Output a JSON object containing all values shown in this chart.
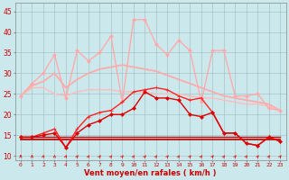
{
  "xlabel": "Vent moyen/en rafales ( km/h )",
  "background_color": "#cbe9ed",
  "grid_color": "#a0b8bb",
  "x": [
    0,
    1,
    2,
    3,
    4,
    5,
    6,
    7,
    8,
    9,
    10,
    11,
    12,
    13,
    14,
    15,
    16,
    17,
    18,
    19,
    20,
    21,
    22,
    23
  ],
  "ylim": [
    9,
    47
  ],
  "yticks": [
    10,
    15,
    20,
    25,
    30,
    35,
    40,
    45
  ],
  "series": [
    {
      "values": [
        14.5,
        14.5,
        14.5,
        14.5,
        14.5,
        14.5,
        14.5,
        14.5,
        14.5,
        14.5,
        14.5,
        14.5,
        14.5,
        14.5,
        14.5,
        14.5,
        14.5,
        14.5,
        14.5,
        14.5,
        14.5,
        14.5,
        14.5,
        14.5
      ],
      "color": "#cc0000",
      "linewidth": 1.0,
      "marker": null
    },
    {
      "values": [
        14.0,
        14.0,
        14.0,
        14.0,
        14.0,
        14.0,
        14.0,
        14.0,
        14.0,
        14.0,
        14.0,
        14.0,
        14.0,
        14.0,
        14.0,
        14.0,
        14.0,
        14.0,
        14.0,
        14.0,
        14.0,
        14.0,
        14.0,
        14.0
      ],
      "color": "#aa0000",
      "linewidth": 1.2,
      "marker": null
    },
    {
      "values": [
        24.5,
        27.0,
        28.0,
        30.0,
        26.5,
        28.5,
        30.0,
        31.0,
        31.5,
        32.0,
        31.5,
        31.0,
        30.5,
        29.5,
        28.5,
        27.5,
        26.5,
        25.5,
        24.5,
        24.0,
        23.5,
        23.0,
        22.5,
        21.0
      ],
      "color": "#ffaaaa",
      "linewidth": 1.3,
      "marker": null
    },
    {
      "values": [
        24.5,
        26.5,
        26.5,
        25.0,
        24.5,
        25.5,
        26.0,
        26.0,
        26.0,
        25.5,
        25.5,
        25.5,
        25.0,
        25.0,
        25.0,
        24.5,
        24.0,
        24.0,
        23.5,
        23.0,
        22.5,
        22.5,
        22.0,
        21.0
      ],
      "color": "#ffbbbb",
      "linewidth": 1.0,
      "marker": null
    },
    {
      "values": [
        24.5,
        27.5,
        30.0,
        34.5,
        24.0,
        35.5,
        33.0,
        35.0,
        39.0,
        23.0,
        43.0,
        43.0,
        37.0,
        34.5,
        38.0,
        35.5,
        23.0,
        35.5,
        35.5,
        24.5,
        24.5,
        25.0,
        21.5,
        21.0
      ],
      "color": "#ffaaaa",
      "linewidth": 1.0,
      "marker": "D",
      "markersize": 2.0
    },
    {
      "values": [
        14.5,
        14.5,
        15.5,
        16.5,
        12.0,
        16.5,
        19.5,
        20.5,
        21.0,
        23.0,
        25.5,
        26.0,
        26.5,
        26.0,
        24.5,
        23.5,
        24.0,
        20.5,
        15.5,
        15.5,
        13.0,
        12.5,
        14.5,
        13.5
      ],
      "color": "#ff2222",
      "linewidth": 1.0,
      "marker": "+",
      "markersize": 3.5
    },
    {
      "values": [
        14.5,
        14.5,
        15.0,
        15.5,
        12.0,
        15.5,
        17.5,
        18.5,
        20.0,
        20.0,
        21.5,
        25.5,
        24.0,
        24.0,
        23.5,
        20.0,
        19.5,
        20.5,
        15.5,
        15.5,
        13.0,
        12.5,
        14.5,
        13.5
      ],
      "color": "#dd0000",
      "linewidth": 1.0,
      "marker": "D",
      "markersize": 2.0
    }
  ],
  "arrows": {
    "angles_deg": [
      0,
      0,
      15,
      5,
      30,
      40,
      40,
      40,
      45,
      45,
      45,
      45,
      45,
      45,
      45,
      45,
      45,
      45,
      45,
      45,
      45,
      45,
      45,
      45
    ],
    "color": "#dd2222",
    "y": 9.8
  }
}
